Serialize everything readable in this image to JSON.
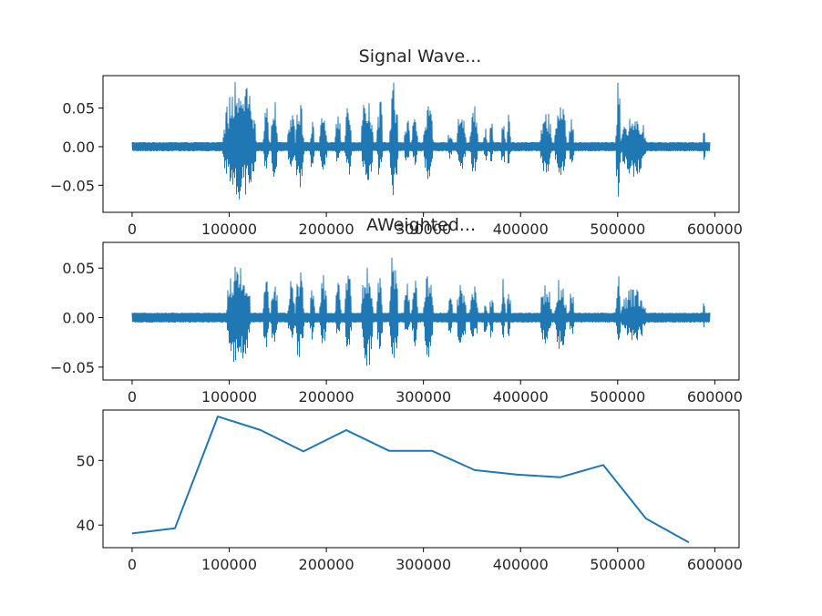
{
  "chart_data": [
    {
      "type": "line",
      "title": "Signal Wave...",
      "xlabel": "",
      "ylabel": "",
      "xlim": [
        -30000,
        625000
      ],
      "ylim": [
        -0.085,
        0.092
      ],
      "x_ticks": [
        0,
        100000,
        200000,
        300000,
        400000,
        500000,
        600000
      ],
      "x_tick_labels": [
        "0",
        "100000",
        "200000",
        "300000",
        "400000",
        "500000",
        "600000"
      ],
      "y_ticks": [
        0.05,
        0.0,
        -0.05
      ],
      "y_tick_labels": [
        "0.05",
        "0.00",
        "−0.05"
      ],
      "series": [
        {
          "color": "#1f77b4",
          "x_range": [
            0,
            595000
          ],
          "noise_floor": 0.006,
          "bursts": [
            {
              "x": [
                93000,
                128000
              ],
              "pos_peak": 0.088,
              "neg_peak": -0.07
            },
            {
              "x": [
                135000,
                141000
              ],
              "pos_peak": 0.055,
              "neg_peak": -0.035
            },
            {
              "x": [
                143000,
                150000
              ],
              "pos_peak": 0.06,
              "neg_peak": -0.04
            },
            {
              "x": [
                160000,
                168000
              ],
              "pos_peak": 0.045,
              "neg_peak": -0.03
            },
            {
              "x": [
                168000,
                177000
              ],
              "pos_peak": 0.06,
              "neg_peak": -0.06
            },
            {
              "x": [
                183000,
                188000
              ],
              "pos_peak": 0.035,
              "neg_peak": -0.03
            },
            {
              "x": [
                193000,
                201000
              ],
              "pos_peak": 0.05,
              "neg_peak": -0.03
            },
            {
              "x": [
                209000,
                215000
              ],
              "pos_peak": 0.045,
              "neg_peak": -0.025
            },
            {
              "x": [
                219000,
                226000
              ],
              "pos_peak": 0.055,
              "neg_peak": -0.04
            },
            {
              "x": [
                236000,
                248000
              ],
              "pos_peak": 0.085,
              "neg_peak": -0.055
            },
            {
              "x": [
                252000,
                258000
              ],
              "pos_peak": 0.065,
              "neg_peak": -0.04
            },
            {
              "x": [
                265000,
                274000
              ],
              "pos_peak": 0.085,
              "neg_peak": -0.075
            },
            {
              "x": [
                280000,
                286000
              ],
              "pos_peak": 0.04,
              "neg_peak": -0.025
            },
            {
              "x": [
                288000,
                294000
              ],
              "pos_peak": 0.045,
              "neg_peak": -0.03
            },
            {
              "x": [
                300000,
                310000
              ],
              "pos_peak": 0.065,
              "neg_peak": -0.045
            },
            {
              "x": [
                325000,
                330000
              ],
              "pos_peak": 0.03,
              "neg_peak": -0.02
            },
            {
              "x": [
                334000,
                344000
              ],
              "pos_peak": 0.05,
              "neg_peak": -0.03
            },
            {
              "x": [
                348000,
                356000
              ],
              "pos_peak": 0.06,
              "neg_peak": -0.035
            },
            {
              "x": [
                362000,
                366000
              ],
              "pos_peak": 0.03,
              "neg_peak": -0.02
            },
            {
              "x": [
                368000,
                372000
              ],
              "pos_peak": 0.04,
              "neg_peak": -0.025
            },
            {
              "x": [
                380000,
                384000
              ],
              "pos_peak": 0.06,
              "neg_peak": -0.03
            },
            {
              "x": [
                386000,
                390000
              ],
              "pos_peak": 0.045,
              "neg_peak": -0.025
            },
            {
              "x": [
                420000,
                432000
              ],
              "pos_peak": 0.055,
              "neg_peak": -0.04
            },
            {
              "x": [
                435000,
                447000
              ],
              "pos_peak": 0.06,
              "neg_peak": -0.04
            },
            {
              "x": [
                450000,
                455000
              ],
              "pos_peak": 0.04,
              "neg_peak": -0.025
            },
            {
              "x": [
                498000,
                503000
              ],
              "pos_peak": 0.088,
              "neg_peak": -0.08
            },
            {
              "x": [
                503000,
                530000
              ],
              "pos_peak": 0.045,
              "neg_peak": -0.04
            },
            {
              "x": [
                588000,
                590000
              ],
              "pos_peak": 0.035,
              "neg_peak": -0.03
            }
          ]
        }
      ]
    },
    {
      "type": "line",
      "title": "AWeighted...",
      "xlabel": "",
      "ylabel": "",
      "xlim": [
        -30000,
        625000
      ],
      "ylim": [
        -0.063,
        0.076
      ],
      "x_ticks": [
        0,
        100000,
        200000,
        300000,
        400000,
        500000,
        600000
      ],
      "x_tick_labels": [
        "0",
        "100000",
        "200000",
        "300000",
        "400000",
        "500000",
        "600000"
      ],
      "y_ticks": [
        0.05,
        0.0,
        -0.05
      ],
      "y_tick_labels": [
        "0.05",
        "0.00",
        "−0.05"
      ],
      "series": [
        {
          "color": "#1f77b4",
          "x_range": [
            0,
            595000
          ],
          "noise_floor": 0.005,
          "bursts": [
            {
              "x": [
                97000,
                122000
              ],
              "pos_peak": 0.064,
              "neg_peak": -0.054
            },
            {
              "x": [
                135000,
                141000
              ],
              "pos_peak": 0.045,
              "neg_peak": -0.035
            },
            {
              "x": [
                143000,
                150000
              ],
              "pos_peak": 0.05,
              "neg_peak": -0.035
            },
            {
              "x": [
                160000,
                168000
              ],
              "pos_peak": 0.045,
              "neg_peak": -0.025
            },
            {
              "x": [
                168000,
                177000
              ],
              "pos_peak": 0.05,
              "neg_peak": -0.045
            },
            {
              "x": [
                183000,
                188000
              ],
              "pos_peak": 0.03,
              "neg_peak": -0.025
            },
            {
              "x": [
                193000,
                201000
              ],
              "pos_peak": 0.045,
              "neg_peak": -0.03
            },
            {
              "x": [
                209000,
                215000
              ],
              "pos_peak": 0.04,
              "neg_peak": -0.025
            },
            {
              "x": [
                219000,
                226000
              ],
              "pos_peak": 0.05,
              "neg_peak": -0.035
            },
            {
              "x": [
                236000,
                248000
              ],
              "pos_peak": 0.055,
              "neg_peak": -0.055
            },
            {
              "x": [
                252000,
                258000
              ],
              "pos_peak": 0.05,
              "neg_peak": -0.035
            },
            {
              "x": [
                265000,
                274000
              ],
              "pos_peak": 0.07,
              "neg_peak": -0.05
            },
            {
              "x": [
                280000,
                286000
              ],
              "pos_peak": 0.035,
              "neg_peak": -0.025
            },
            {
              "x": [
                288000,
                294000
              ],
              "pos_peak": 0.04,
              "neg_peak": -0.03
            },
            {
              "x": [
                300000,
                310000
              ],
              "pos_peak": 0.05,
              "neg_peak": -0.04
            },
            {
              "x": [
                325000,
                330000
              ],
              "pos_peak": 0.025,
              "neg_peak": -0.02
            },
            {
              "x": [
                334000,
                344000
              ],
              "pos_peak": 0.04,
              "neg_peak": -0.03
            },
            {
              "x": [
                348000,
                356000
              ],
              "pos_peak": 0.035,
              "neg_peak": -0.03
            },
            {
              "x": [
                362000,
                366000
              ],
              "pos_peak": 0.025,
              "neg_peak": -0.02
            },
            {
              "x": [
                368000,
                372000
              ],
              "pos_peak": 0.03,
              "neg_peak": -0.025
            },
            {
              "x": [
                380000,
                384000
              ],
              "pos_peak": 0.04,
              "neg_peak": -0.025
            },
            {
              "x": [
                386000,
                390000
              ],
              "pos_peak": 0.035,
              "neg_peak": -0.02
            },
            {
              "x": [
                420000,
                432000
              ],
              "pos_peak": 0.04,
              "neg_peak": -0.03
            },
            {
              "x": [
                435000,
                447000
              ],
              "pos_peak": 0.045,
              "neg_peak": -0.035
            },
            {
              "x": [
                450000,
                455000
              ],
              "pos_peak": 0.03,
              "neg_peak": -0.02
            },
            {
              "x": [
                498000,
                503000
              ],
              "pos_peak": 0.045,
              "neg_peak": -0.035
            },
            {
              "x": [
                503000,
                530000
              ],
              "pos_peak": 0.03,
              "neg_peak": -0.025
            },
            {
              "x": [
                588000,
                590000
              ],
              "pos_peak": 0.02,
              "neg_peak": -0.015
            }
          ]
        }
      ]
    },
    {
      "type": "line",
      "title": "",
      "xlabel": "",
      "ylabel": "",
      "xlim": [
        -30000,
        625000
      ],
      "ylim": [
        36.5,
        57.8
      ],
      "x_ticks": [
        0,
        100000,
        200000,
        300000,
        400000,
        500000,
        600000
      ],
      "x_tick_labels": [
        "0",
        "100000",
        "200000",
        "300000",
        "400000",
        "500000",
        "600000"
      ],
      "y_ticks": [
        50,
        40
      ],
      "y_tick_labels": [
        "50",
        "40"
      ],
      "series": [
        {
          "color": "#1f77b4",
          "x": [
            0,
            44100,
            88200,
            132300,
            176400,
            220500,
            264600,
            308700,
            352800,
            396900,
            441000,
            485100,
            529200,
            573300
          ],
          "y": [
            38.7,
            39.5,
            56.8,
            54.7,
            51.4,
            54.7,
            51.5,
            51.5,
            48.5,
            47.8,
            47.4,
            49.3,
            41.0,
            37.3
          ]
        }
      ]
    }
  ]
}
